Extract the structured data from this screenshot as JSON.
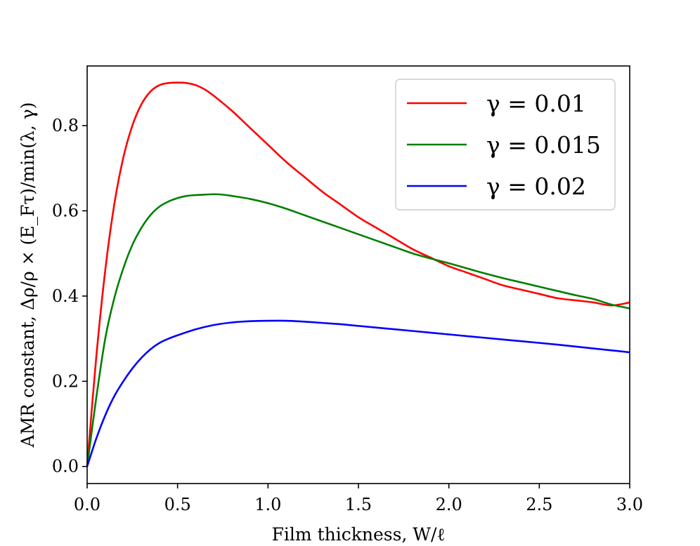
{
  "chart_data": {
    "type": "line",
    "xlabel": "Film thickness, W/ℓ",
    "ylabel": "AMR constant, Δρ/ρ × (E_Fτ)/min(λ, γ)",
    "xlim": [
      0.0,
      3.0
    ],
    "ylim": [
      -0.04,
      0.94
    ],
    "xticks": [
      0.0,
      0.5,
      1.0,
      1.5,
      2.0,
      2.5,
      3.0
    ],
    "xtick_labels": [
      "0.0",
      "0.5",
      "1.0",
      "1.5",
      "2.0",
      "2.5",
      "3.0"
    ],
    "yticks": [
      0.0,
      0.2,
      0.4,
      0.6,
      0.8
    ],
    "ytick_labels": [
      "0.0",
      "0.2",
      "0.4",
      "0.6",
      "0.8"
    ],
    "grid": false,
    "legend_position": "top-right",
    "series": [
      {
        "name": "γ = 0.01",
        "color": "#ff0000",
        "x": [
          0.0,
          0.05,
          0.1,
          0.15,
          0.2,
          0.25,
          0.3,
          0.35,
          0.4,
          0.45,
          0.5,
          0.55,
          0.6,
          0.65,
          0.7,
          0.8,
          0.9,
          1.0,
          1.1,
          1.2,
          1.3,
          1.4,
          1.5,
          1.6,
          1.7,
          1.8,
          1.9,
          2.0,
          2.1,
          2.2,
          2.3,
          2.4,
          2.5,
          2.6,
          2.7,
          2.8,
          2.9,
          3.0
        ],
        "y": [
          0.0,
          0.255,
          0.46,
          0.615,
          0.725,
          0.8,
          0.85,
          0.88,
          0.895,
          0.9,
          0.901,
          0.9,
          0.895,
          0.885,
          0.87,
          0.835,
          0.795,
          0.755,
          0.715,
          0.68,
          0.645,
          0.615,
          0.585,
          0.56,
          0.535,
          0.51,
          0.49,
          0.47,
          0.455,
          0.44,
          0.425,
          0.415,
          0.405,
          0.395,
          0.39,
          0.385,
          0.378,
          0.385
        ]
      },
      {
        "name": "γ = 0.015",
        "color": "#007f00",
        "x": [
          0.0,
          0.05,
          0.1,
          0.15,
          0.2,
          0.25,
          0.3,
          0.35,
          0.4,
          0.45,
          0.5,
          0.55,
          0.6,
          0.65,
          0.7,
          0.75,
          0.8,
          0.9,
          1.0,
          1.1,
          1.2,
          1.3,
          1.4,
          1.5,
          1.6,
          1.7,
          1.8,
          1.9,
          2.0,
          2.1,
          2.2,
          2.3,
          2.4,
          2.5,
          2.6,
          2.7,
          2.8,
          2.9,
          3.0
        ],
        "y": [
          0.0,
          0.16,
          0.3,
          0.395,
          0.465,
          0.52,
          0.56,
          0.59,
          0.61,
          0.622,
          0.63,
          0.635,
          0.637,
          0.638,
          0.639,
          0.638,
          0.635,
          0.628,
          0.618,
          0.605,
          0.59,
          0.575,
          0.56,
          0.545,
          0.53,
          0.515,
          0.5,
          0.488,
          0.477,
          0.465,
          0.453,
          0.442,
          0.432,
          0.422,
          0.412,
          0.402,
          0.393,
          0.38,
          0.371
        ]
      },
      {
        "name": "γ = 0.02",
        "color": "#0000ff",
        "x": [
          0.0,
          0.05,
          0.1,
          0.15,
          0.2,
          0.25,
          0.3,
          0.35,
          0.4,
          0.45,
          0.5,
          0.6,
          0.7,
          0.8,
          0.9,
          1.0,
          1.1,
          1.2,
          1.3,
          1.4,
          1.5,
          1.6,
          1.7,
          1.8,
          1.9,
          2.0,
          2.2,
          2.4,
          2.6,
          2.8,
          3.0
        ],
        "y": [
          0.0,
          0.065,
          0.12,
          0.165,
          0.2,
          0.23,
          0.255,
          0.275,
          0.29,
          0.3,
          0.308,
          0.322,
          0.332,
          0.338,
          0.341,
          0.342,
          0.342,
          0.34,
          0.337,
          0.334,
          0.33,
          0.326,
          0.322,
          0.318,
          0.314,
          0.31,
          0.302,
          0.294,
          0.286,
          0.277,
          0.268
        ]
      }
    ]
  }
}
